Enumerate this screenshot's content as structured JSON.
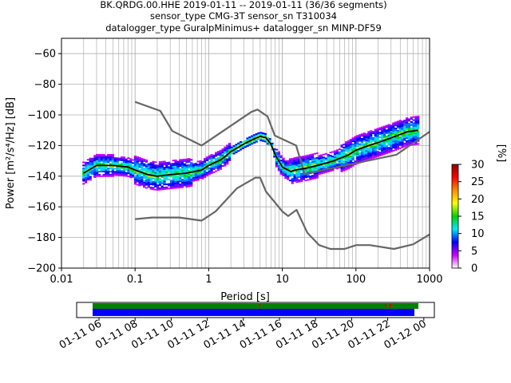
{
  "chart_data": {
    "type": "heatmap",
    "title_lines": [
      "BK.QRDG.00.HHE   2019-01-11 -- 2019-01-11  (36/36 segments)",
      "sensor_type CMG-3T sensor_sn T310034",
      "datalogger_type GuralpMinimus+ datalogger_sn MINP-DF59"
    ],
    "xlabel": "Period [s]",
    "ylabel": "Power [m²/s⁴/Hz] [dB]",
    "x_scale": "log",
    "xlim": [
      0.01,
      1000
    ],
    "ylim": [
      -200,
      -50
    ],
    "x_tick_labels": [
      "0.01",
      "0.1",
      "1",
      "10",
      "100",
      "1000"
    ],
    "y_tick_labels": [
      "-200",
      "-180",
      "-160",
      "-140",
      "-120",
      "-100",
      "-80",
      "-60"
    ],
    "grid": true,
    "colorbar": {
      "label": "[%]",
      "range": [
        0,
        30
      ],
      "tick_labels": [
        "0",
        "5",
        "10",
        "15",
        "20",
        "25",
        "30"
      ],
      "colors": [
        "#ffffff",
        "#cc00ff",
        "#0000ff",
        "#00e6ff",
        "#00d200",
        "#ffff00",
        "#ff8c00",
        "#ff0000",
        "#8b0000"
      ]
    },
    "nlnm": {
      "period": [
        0.1,
        0.17,
        0.4,
        0.8,
        1.24,
        2.4,
        4.3,
        5.0,
        6.0,
        10.0,
        12.0,
        15.6,
        21.9,
        31.6,
        45.0,
        70.0,
        101.0,
        154.0,
        328.0,
        600.0,
        1000.0
      ],
      "power": [
        -168,
        -167,
        -167,
        -169,
        -163,
        -148,
        -141,
        -141,
        -150,
        -163,
        -166,
        -162,
        -177,
        -185,
        -187.5,
        -187.5,
        -185,
        -185,
        -187.5,
        -184.5,
        -178
      ]
    },
    "nhnm": {
      "period": [
        0.1,
        0.22,
        0.32,
        0.8,
        3.8,
        4.6,
        6.3,
        7.9,
        15.4,
        20.0,
        354.8,
        1000.0
      ],
      "power": [
        -91.5,
        -97.4,
        -110.5,
        -120,
        -98,
        -96.5,
        -101,
        -113.5,
        -120,
        -138.5,
        -126,
        -111
      ]
    },
    "mean_curve": {
      "period": [
        0.02,
        0.03,
        0.05,
        0.08,
        0.1,
        0.15,
        0.2,
        0.3,
        0.5,
        0.8,
        1.0,
        1.5,
        2.0,
        3.0,
        4.0,
        5.0,
        6.0,
        7.0,
        8.0,
        10.0,
        13.0,
        15.0,
        20.0,
        30.0,
        50.0,
        80.0,
        100.0,
        150.0,
        200.0,
        300.0,
        500.0,
        700.0
      ],
      "power": [
        -138,
        -133,
        -133,
        -134,
        -136,
        -139,
        -140,
        -139,
        -138,
        -136,
        -133,
        -129,
        -124,
        -119,
        -116,
        -114,
        -115,
        -119,
        -126,
        -134,
        -137,
        -136,
        -135,
        -133,
        -130,
        -126,
        -123,
        -120,
        -118,
        -115,
        -111,
        -110
      ]
    },
    "data_availability": {
      "time_ticks": [
        "01-11 06",
        "01-11 08",
        "01-11 10",
        "01-11 12",
        "01-11 14",
        "01-11 16",
        "01-11 18",
        "01-11 20",
        "01-11 22",
        "01-12 00"
      ]
    }
  }
}
